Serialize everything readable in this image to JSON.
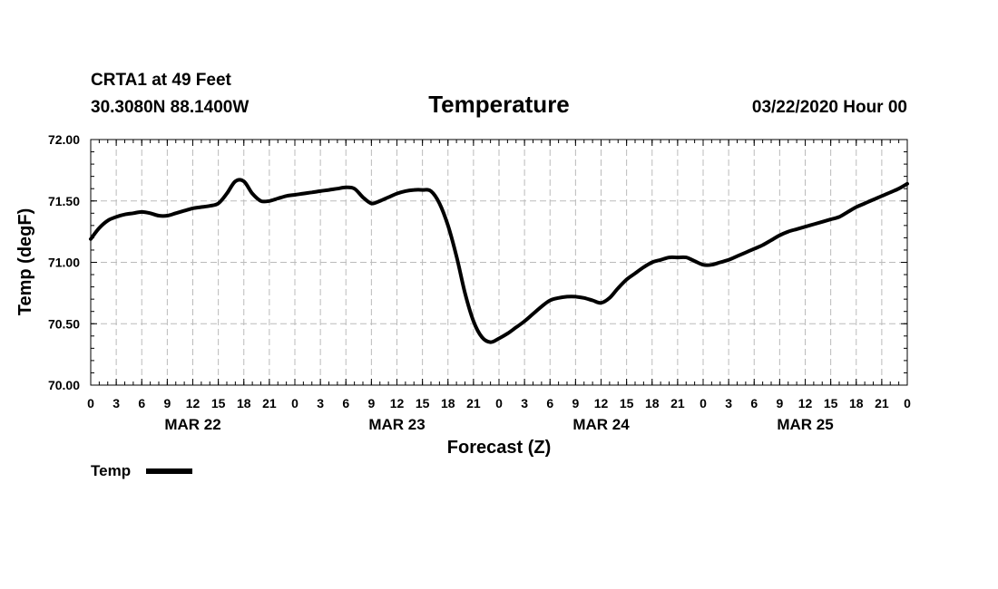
{
  "header": {
    "station": "CRTA1 at 49 Feet",
    "location": "30.3080N 88.1400W",
    "issued": "03/22/2020 Hour 00"
  },
  "chart_data": {
    "type": "line",
    "title": "Temperature",
    "xlabel": "Forecast (Z)",
    "ylabel": "Temp (degF)",
    "ylim": [
      70.0,
      72.0
    ],
    "yticks": [
      "70.00",
      "70.50",
      "71.00",
      "71.50",
      "72.00"
    ],
    "xlim": [
      0,
      96
    ],
    "xtick_labels": [
      "0",
      "3",
      "6",
      "9",
      "12",
      "15",
      "18",
      "21",
      "0",
      "3",
      "6",
      "9",
      "12",
      "15",
      "18",
      "21",
      "0",
      "3",
      "6",
      "9",
      "12",
      "15",
      "18",
      "21",
      "0",
      "3",
      "6",
      "9",
      "12",
      "15",
      "18",
      "21",
      "0"
    ],
    "day_labels": [
      "MAR 22",
      "MAR 23",
      "MAR 24",
      "MAR 25"
    ],
    "grid": true,
    "legend": "bottom-left",
    "series": [
      {
        "name": "Temp",
        "color": "#000000",
        "x": [
          0,
          1,
          2,
          3,
          4,
          5,
          6,
          7,
          8,
          9,
          10,
          11,
          12,
          13,
          14,
          15,
          16,
          17,
          18,
          19,
          20,
          21,
          22,
          23,
          24,
          25,
          26,
          27,
          28,
          29,
          30,
          31,
          32,
          33,
          34,
          35,
          36,
          37,
          38,
          39,
          40,
          41,
          42,
          43,
          44,
          45,
          46,
          47,
          48,
          49,
          50,
          51,
          52,
          53,
          54,
          55,
          56,
          57,
          58,
          59,
          60,
          61,
          62,
          63,
          64,
          65,
          66,
          67,
          68,
          69,
          70,
          71,
          72,
          73,
          74,
          75,
          76,
          77,
          78,
          79,
          80,
          81,
          82,
          83,
          84,
          85,
          86,
          87,
          88,
          89,
          90,
          91,
          92,
          93,
          94,
          95,
          96
        ],
        "values": [
          71.19,
          71.28,
          71.34,
          71.37,
          71.39,
          71.4,
          71.41,
          71.4,
          71.38,
          71.38,
          71.4,
          71.42,
          71.44,
          71.45,
          71.46,
          71.48,
          71.56,
          71.66,
          71.66,
          71.56,
          71.5,
          71.5,
          71.52,
          71.54,
          71.55,
          71.56,
          71.57,
          71.58,
          71.59,
          71.6,
          71.61,
          71.6,
          71.53,
          71.48,
          71.5,
          71.53,
          71.56,
          71.58,
          71.59,
          71.59,
          71.58,
          71.48,
          71.3,
          71.05,
          70.75,
          70.52,
          70.39,
          70.35,
          70.38,
          70.42,
          70.47,
          70.52,
          70.58,
          70.64,
          70.69,
          70.71,
          70.72,
          70.72,
          70.71,
          70.69,
          70.67,
          70.71,
          70.79,
          70.86,
          70.91,
          70.96,
          71.0,
          71.02,
          71.04,
          71.04,
          71.04,
          71.01,
          70.98,
          70.98,
          71.0,
          71.02,
          71.05,
          71.08,
          71.11,
          71.14,
          71.18,
          71.22,
          71.25,
          71.27,
          71.29,
          71.31,
          71.33,
          71.35,
          71.37,
          71.41,
          71.45,
          71.48,
          71.51,
          71.54,
          71.57,
          71.6,
          71.64
        ]
      }
    ]
  }
}
